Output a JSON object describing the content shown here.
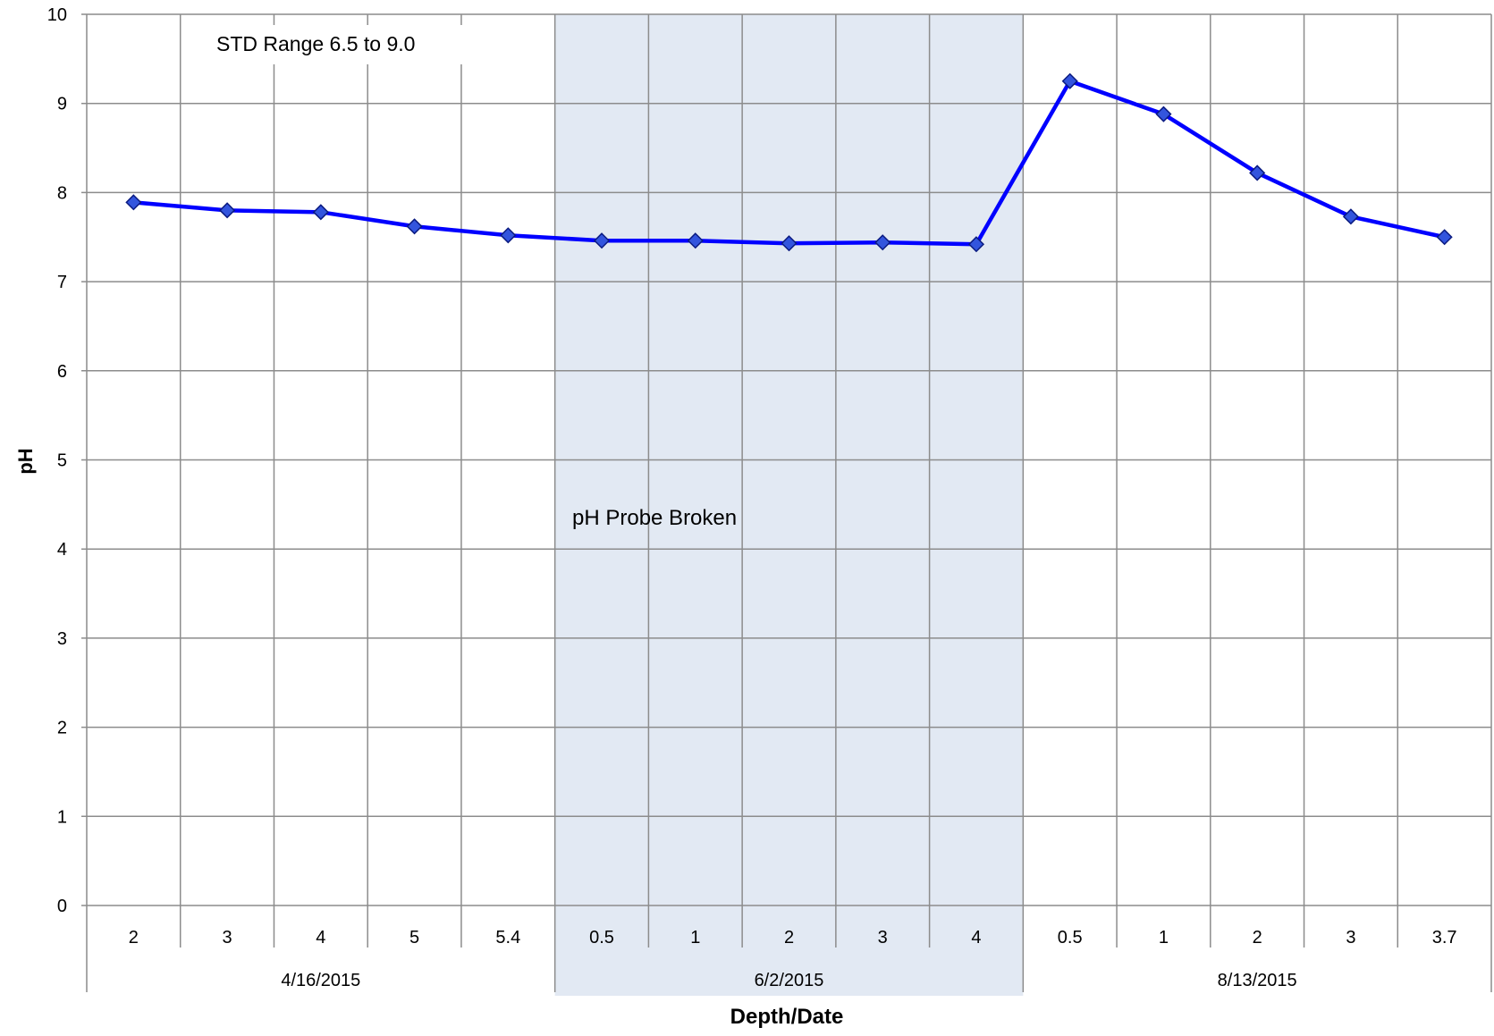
{
  "chart_data": {
    "type": "line",
    "title": "",
    "xlabel": "Depth/Date",
    "ylabel": "pH",
    "ylim": [
      0,
      10
    ],
    "yticks": [
      "0",
      "1",
      "2",
      "3",
      "4",
      "5",
      "6",
      "7",
      "8",
      "9",
      "10"
    ],
    "grid": true,
    "legend": "none",
    "groups": [
      {
        "label": "4/16/2015",
        "depths": [
          "2",
          "3",
          "4",
          "5",
          "5.4"
        ],
        "shaded": false
      },
      {
        "label": "6/2/2015",
        "depths": [
          "0.5",
          "1",
          "2",
          "3",
          "4"
        ],
        "shaded": true
      },
      {
        "label": "8/13/2015",
        "depths": [
          "0.5",
          "1",
          "2",
          "3",
          "3.7"
        ],
        "shaded": false
      }
    ],
    "series": [
      {
        "values": [
          7.89,
          7.8,
          7.78,
          7.62,
          7.52,
          7.46,
          7.46,
          7.43,
          7.44,
          7.42,
          9.25,
          8.88,
          8.22,
          7.73,
          7.5
        ],
        "color": "#0000ff",
        "marker": "diamond"
      }
    ],
    "annotations": {
      "std_range": "STD Range 6.5 to 9.0",
      "probe_note": "pH Probe Broken"
    },
    "colors": {
      "line": "#0000ff",
      "marker_fill": "#3355dd",
      "marker_edge": "#0a1a80",
      "shade": "#e2e9f3",
      "grid": "#8c8c8c"
    }
  }
}
